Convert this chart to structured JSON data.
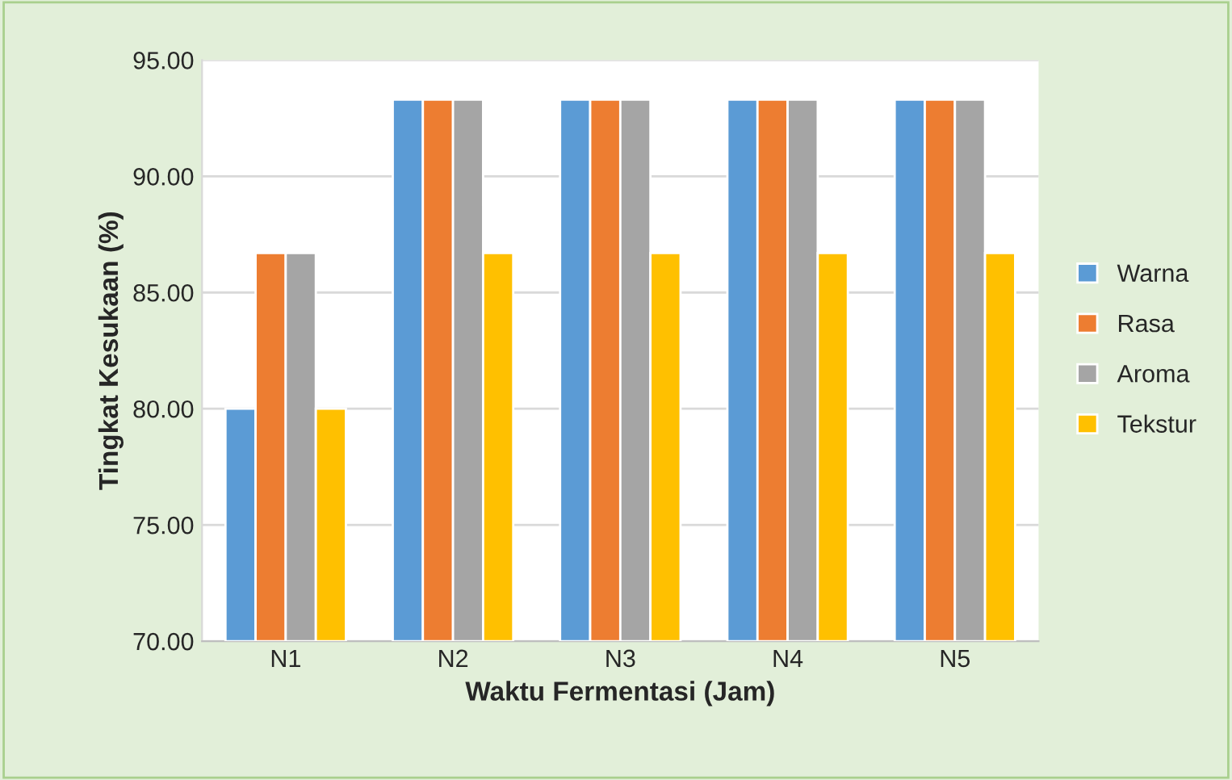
{
  "chart_data": {
    "type": "bar",
    "xlabel": "Waktu Fermentasi (Jam)",
    "ylabel": "Tingkat Kesukaan (%)",
    "categories": [
      "N1",
      "N2",
      "N3",
      "N4",
      "N5"
    ],
    "series": [
      {
        "name": "Warna",
        "color": "#5b9bd5",
        "values": [
          80,
          93.3,
          93.3,
          93.3,
          93.3
        ]
      },
      {
        "name": "Rasa",
        "color": "#ed7d31",
        "values": [
          86.7,
          93.3,
          93.3,
          93.3,
          93.3
        ]
      },
      {
        "name": "Aroma",
        "color": "#a5a5a5",
        "values": [
          86.7,
          93.3,
          93.3,
          93.3,
          93.3
        ]
      },
      {
        "name": "Tekstur",
        "color": "#ffc000",
        "values": [
          80,
          86.7,
          86.7,
          86.7,
          86.7
        ]
      }
    ],
    "ylim": [
      70,
      95
    ],
    "yticks": [
      {
        "value": 70,
        "label": "70.00"
      },
      {
        "value": 75,
        "label": "75.00"
      },
      {
        "value": 80,
        "label": "80.00"
      },
      {
        "value": 85,
        "label": "85.00"
      },
      {
        "value": 90,
        "label": "90.00"
      },
      {
        "value": 95,
        "label": "95.00"
      }
    ],
    "grid": "y",
    "legend": "right"
  }
}
